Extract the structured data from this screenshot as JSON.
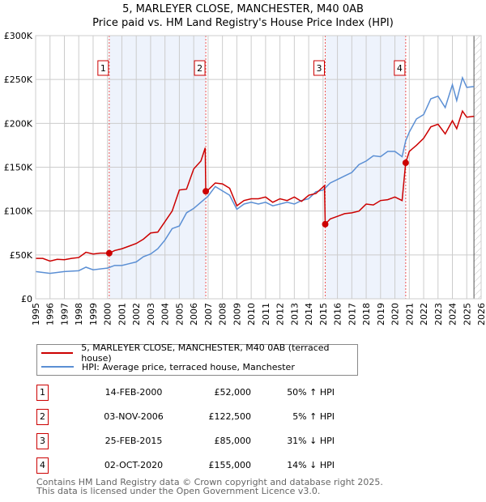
{
  "title": "5, MARLEYER CLOSE, MANCHESTER, M40 0AB",
  "subtitle": "Price paid vs. HM Land Registry's House Price Index (HPI)",
  "chart_data": {
    "type": "line",
    "title": "5, MARLEYER CLOSE, MANCHESTER, M40 0AB",
    "subtitle": "Price paid vs. HM Land Registry's House Price Index (HPI)",
    "xlim": [
      1995,
      2026
    ],
    "ylim": [
      0,
      300000
    ],
    "yticks": [
      0,
      50000,
      100000,
      150000,
      200000,
      250000,
      300000
    ],
    "ytick_labels": [
      "£0",
      "£50K",
      "£100K",
      "£150K",
      "£200K",
      "£250K",
      "£300K"
    ],
    "xtick_labels": [
      "1995",
      "1996",
      "1997",
      "1998",
      "1999",
      "2000",
      "2001",
      "2002",
      "2003",
      "2004",
      "2005",
      "2006",
      "2007",
      "2008",
      "2009",
      "2010",
      "2011",
      "2012",
      "2013",
      "2014",
      "2015",
      "2016",
      "2017",
      "2018",
      "2019",
      "2020",
      "2021",
      "2022",
      "2023",
      "2024",
      "2025",
      "2026"
    ],
    "grid": true,
    "shaded_ranges": [
      [
        2000.12,
        2006.84
      ],
      [
        2015.15,
        2020.75
      ]
    ],
    "forecast_hatch_from": 2025.5,
    "series": [
      {
        "name": "5, MARLEYER CLOSE, MANCHESTER, M40 0AB (terraced house)",
        "color": "#cc0000",
        "x": [
          1995,
          1995.5,
          1996,
          1996.5,
          1997,
          1997.5,
          1998,
          1998.5,
          1999,
          1999.5,
          2000.12,
          2000.5,
          2001,
          2001.5,
          2002,
          2002.5,
          2003,
          2003.5,
          2004,
          2004.5,
          2005,
          2005.5,
          2006,
          2006.5,
          2006.8,
          2006.84,
          2007,
          2007.5,
          2008,
          2008.5,
          2009,
          2009.5,
          2010,
          2010.5,
          2011,
          2011.5,
          2012,
          2012.5,
          2013,
          2013.5,
          2014,
          2014.5,
          2015.1,
          2015.15,
          2015.5,
          2016,
          2016.5,
          2017,
          2017.5,
          2018,
          2018.5,
          2019,
          2019.5,
          2020,
          2020.5,
          2020.75,
          2021,
          2021.5,
          2022,
          2022.5,
          2023,
          2023.5,
          2024,
          2024.3,
          2024.7,
          2025,
          2025.5
        ],
        "y": [
          46,
          46,
          43,
          45,
          44.5,
          46,
          47,
          53,
          51,
          52,
          52,
          55,
          57,
          60,
          63,
          68,
          75,
          76,
          88,
          100,
          124,
          125,
          148,
          157,
          172,
          122.5,
          124,
          132,
          131,
          126,
          106,
          112,
          114,
          114,
          116,
          110,
          114,
          112,
          116,
          111,
          118,
          120,
          129,
          85,
          91,
          94,
          97,
          98,
          100,
          108,
          107,
          112,
          113,
          116,
          112,
          155,
          168,
          175,
          183,
          196,
          199,
          188,
          203,
          194,
          214,
          207,
          208
        ],
        "y_unit": "thousand GBP"
      },
      {
        "name": "HPI: Average price, terraced house, Manchester",
        "color": "#5b8fd4",
        "x": [
          1995,
          1996,
          1997,
          1998,
          1998.5,
          1999,
          2000,
          2000.5,
          2001,
          2001.5,
          2002,
          2002.5,
          2003,
          2003.5,
          2004,
          2004.5,
          2005,
          2005.5,
          2006,
          2006.5,
          2007,
          2007.5,
          2008,
          2008.5,
          2009,
          2009.5,
          2010,
          2010.5,
          2011,
          2011.5,
          2012,
          2012.5,
          2013,
          2013.5,
          2014,
          2014.5,
          2015,
          2015.5,
          2016,
          2016.5,
          2017,
          2017.5,
          2018,
          2018.5,
          2019,
          2019.5,
          2020,
          2020.5,
          2020.75,
          2021,
          2021.5,
          2022,
          2022.5,
          2023,
          2023.5,
          2024,
          2024.3,
          2024.7,
          2025,
          2025.5
        ],
        "y": [
          31,
          29,
          31,
          32,
          36,
          33,
          35,
          38,
          38,
          40,
          42,
          48,
          51,
          57,
          67,
          80,
          83,
          98,
          103,
          110,
          117,
          128,
          123,
          118,
          102,
          108,
          110,
          108,
          110,
          106,
          108,
          110,
          108,
          112,
          114,
          122,
          124,
          132,
          136,
          140,
          144,
          153,
          157,
          163,
          162,
          168,
          168,
          162,
          180,
          190,
          205,
          210,
          228,
          231,
          218,
          244,
          226,
          252,
          241,
          242
        ],
        "y_unit": "thousand GBP"
      }
    ],
    "sales": [
      {
        "n": "1",
        "x": 2000.12,
        "y": 52000
      },
      {
        "n": "2",
        "x": 2006.84,
        "y": 122500
      },
      {
        "n": "3",
        "x": 2015.15,
        "y": 85000
      },
      {
        "n": "4",
        "x": 2020.75,
        "y": 155000
      }
    ]
  },
  "legend": [
    {
      "label": "5, MARLEYER CLOSE, MANCHESTER, M40 0AB (terraced house)",
      "color": "#cc0000"
    },
    {
      "label": "HPI: Average price, terraced house, Manchester",
      "color": "#5b8fd4"
    }
  ],
  "transactions": [
    {
      "n": "1",
      "date": "14-FEB-2000",
      "price": "£52,000",
      "hpi": "50% ↑ HPI"
    },
    {
      "n": "2",
      "date": "03-NOV-2006",
      "price": "£122,500",
      "hpi": "5% ↑ HPI"
    },
    {
      "n": "3",
      "date": "25-FEB-2015",
      "price": "£85,000",
      "hpi": "31% ↓ HPI"
    },
    {
      "n": "4",
      "date": "02-OCT-2020",
      "price": "£155,000",
      "hpi": "14% ↓ HPI"
    }
  ],
  "footer": [
    "Contains HM Land Registry data © Crown copyright and database right 2025.",
    "This data is licensed under the Open Government Licence v3.0."
  ]
}
